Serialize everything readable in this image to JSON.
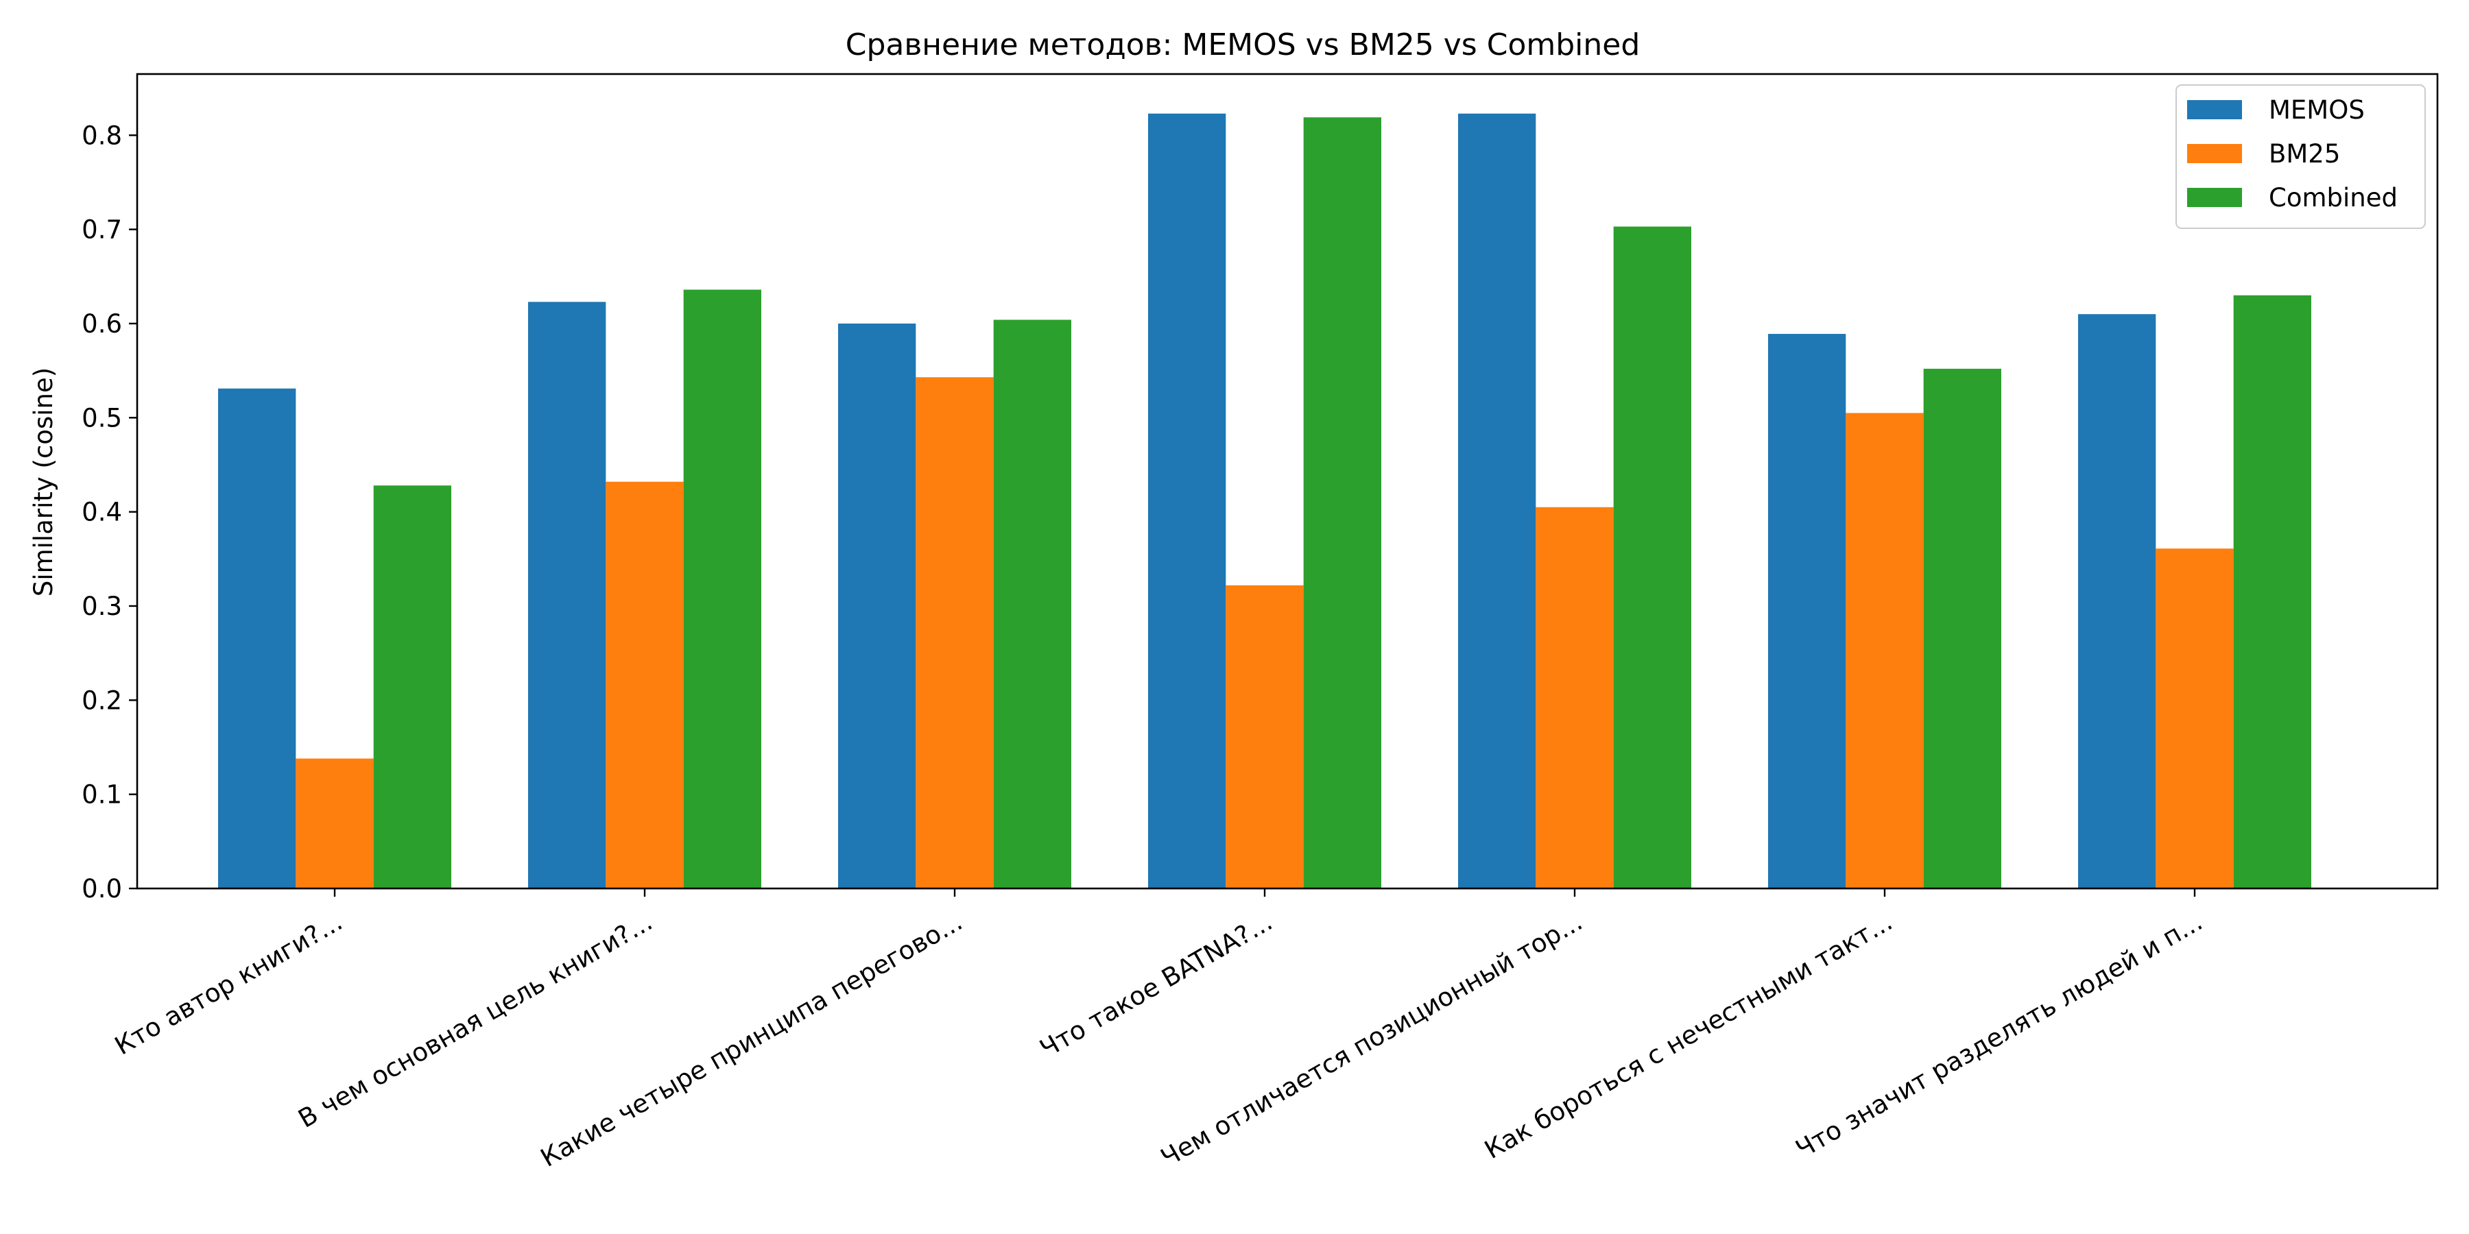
{
  "chart_data": {
    "type": "bar",
    "title": "Сравнение методов: MEMOS vs BM25 vs Combined",
    "xlabel": "",
    "ylabel": "Similarity (cosine)",
    "ylim": [
      0,
      0.865
    ],
    "yticks": [
      "0.0",
      "0.1",
      "0.2",
      "0.3",
      "0.4",
      "0.5",
      "0.6",
      "0.7",
      "0.8"
    ],
    "grid": false,
    "legend_position": "top-right",
    "categories": [
      "Кто автор книги?...",
      "В чем основная цель книги?...",
      "Какие четыре принципа перегово...",
      "Что такое BATNA?...",
      "Чем отличается позиционный тор...",
      "Как бороться с нечестными такт...",
      "Что значит разделять людей и п..."
    ],
    "series": [
      {
        "name": "MEMOS",
        "color": "#1f77b4",
        "values": [
          0.531,
          0.623,
          0.6,
          0.823,
          0.823,
          0.589,
          0.61
        ]
      },
      {
        "name": "BM25",
        "color": "#ff7f0e",
        "values": [
          0.138,
          0.432,
          0.543,
          0.322,
          0.405,
          0.505,
          0.361
        ]
      },
      {
        "name": "Combined",
        "color": "#2ca02c",
        "values": [
          0.428,
          0.636,
          0.604,
          0.819,
          0.703,
          0.552,
          0.63
        ]
      }
    ]
  }
}
